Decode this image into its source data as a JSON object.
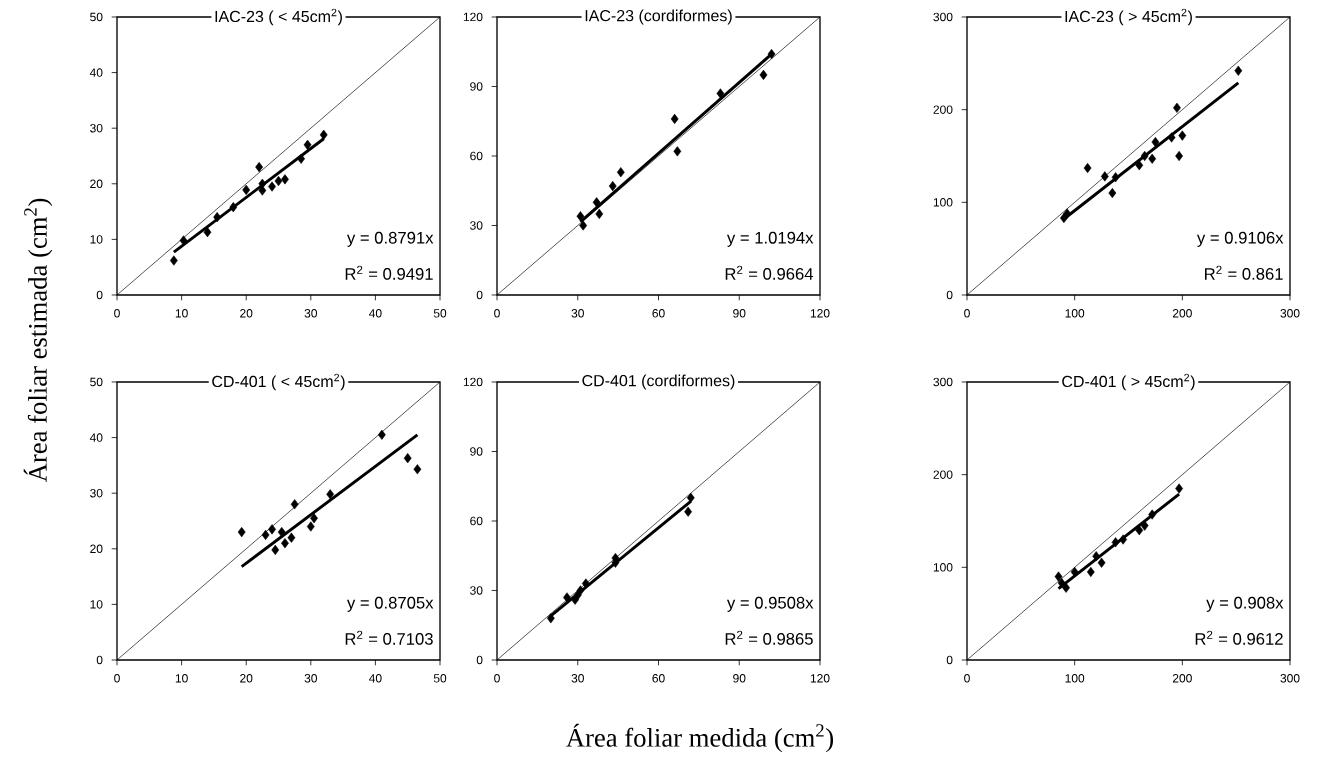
{
  "chart_data": [
    {
      "type": "scatter",
      "title": "IAC-23 ( < 45cm$^{2}$)",
      "ylabel": "Área foliar estimada (cm$^{2}$)",
      "xlim": [
        0,
        50
      ],
      "ylim": [
        0,
        50
      ],
      "xticks": [
        0,
        10,
        20,
        30,
        40,
        50
      ],
      "yticks": [
        0,
        10,
        20,
        30,
        40,
        50
      ],
      "annotations": [
        "y = 0.8791x",
        "R$^{2}$ = 0.9491"
      ],
      "series": [
        {
          "marker": "diamond",
          "color": "#000000",
          "x": [
            8.8,
            10.3,
            14,
            15.5,
            18,
            20,
            22,
            22.5,
            22.5,
            24,
            25,
            26,
            28.5,
            29.5,
            32
          ],
          "values": [
            6.2,
            9.8,
            11.3,
            14,
            15.8,
            18.9,
            23,
            20,
            18.8,
            19.5,
            20.5,
            20.8,
            24.5,
            27,
            28.8
          ]
        },
        {
          "type": "line",
          "color": "#000000",
          "x": [
            8.8,
            32
          ],
          "values": [
            7.7,
            28.1
          ]
        },
        {
          "type": "line",
          "color": "#000000",
          "x": [
            0,
            50
          ],
          "values": [
            0,
            50
          ]
        }
      ]
    },
    {
      "type": "scatter",
      "title": "IAC-23 (cordiformes)",
      "xlim": [
        0,
        120
      ],
      "ylim": [
        0,
        120
      ],
      "xticks": [
        0,
        30,
        60,
        90,
        120
      ],
      "yticks": [
        0,
        30,
        60,
        90,
        120
      ],
      "annotations": [
        "y = 1.0194x",
        "R$^{2}$ = 0.9664"
      ],
      "series": [
        {
          "marker": "diamond",
          "color": "#000000",
          "x": [
            31,
            32,
            37,
            38,
            43,
            46,
            66,
            67,
            83,
            99,
            102
          ],
          "values": [
            34,
            30,
            40,
            35,
            47,
            53,
            76,
            62,
            87,
            95,
            104
          ]
        },
        {
          "type": "line",
          "color": "#000000",
          "x": [
            31,
            102
          ],
          "values": [
            31.6,
            104
          ]
        },
        {
          "type": "line",
          "color": "#000000",
          "x": [
            0,
            120
          ],
          "values": [
            0,
            120
          ]
        }
      ]
    },
    {
      "type": "scatter",
      "title": "IAC-23 ( > 45cm$^{2}$)",
      "xlim": [
        0,
        300
      ],
      "ylim": [
        0,
        300
      ],
      "xticks": [
        0,
        100,
        200,
        300
      ],
      "yticks": [
        0,
        100,
        200,
        300
      ],
      "annotations": [
        "y = 0.9106x",
        "R$^{2}$ = 0.861"
      ],
      "series": [
        {
          "marker": "diamond",
          "color": "#000000",
          "x": [
            90,
            93,
            112,
            128,
            135,
            138,
            160,
            165,
            172,
            175,
            190,
            195,
            197,
            200,
            252
          ],
          "values": [
            83,
            88,
            137,
            128,
            110,
            127,
            140,
            150,
            147,
            165,
            170,
            202,
            150,
            172,
            242
          ]
        },
        {
          "type": "line",
          "color": "#000000",
          "x": [
            90,
            252
          ],
          "values": [
            82,
            229
          ]
        },
        {
          "type": "line",
          "color": "#000000",
          "x": [
            0,
            300
          ],
          "values": [
            0,
            300
          ]
        }
      ]
    },
    {
      "type": "scatter",
      "title": "CD-401 ( < 45cm$^{2}$)",
      "xlim": [
        0,
        50
      ],
      "ylim": [
        0,
        50
      ],
      "xticks": [
        0,
        10,
        20,
        30,
        40,
        50
      ],
      "yticks": [
        0,
        10,
        20,
        30,
        40,
        50
      ],
      "annotations": [
        "y = 0.8705x",
        "R$^{2}$ = 0.7103"
      ],
      "series": [
        {
          "marker": "diamond",
          "color": "#000000",
          "x": [
            19.3,
            23,
            24,
            24.5,
            25.5,
            26,
            27,
            27.5,
            30,
            30.5,
            33,
            41,
            45,
            46.5
          ],
          "values": [
            23,
            22.5,
            23.5,
            19.8,
            23,
            21,
            22,
            28,
            24,
            25.5,
            29.8,
            40.5,
            36.3,
            34.3
          ]
        },
        {
          "type": "line",
          "color": "#000000",
          "x": [
            19.3,
            46.5
          ],
          "values": [
            16.8,
            40.5
          ]
        },
        {
          "type": "line",
          "color": "#000000",
          "x": [
            0,
            50
          ],
          "values": [
            0,
            50
          ]
        }
      ]
    },
    {
      "type": "scatter",
      "title": "CD-401 (cordiformes)",
      "xlabel": "Área foliar medida (cm$^{2}$)",
      "xlim": [
        0,
        120
      ],
      "ylim": [
        0,
        120
      ],
      "xticks": [
        0,
        30,
        60,
        90,
        120
      ],
      "yticks": [
        0,
        30,
        60,
        90,
        120
      ],
      "annotations": [
        "y = 0.9508x",
        "R$^{2}$ = 0.9865"
      ],
      "series": [
        {
          "marker": "diamond",
          "color": "#000000",
          "x": [
            20,
            26,
            29,
            30,
            31,
            33,
            44,
            44,
            71,
            72
          ],
          "values": [
            18,
            27,
            26,
            28,
            30,
            33,
            44,
            42,
            64,
            70
          ]
        },
        {
          "type": "line",
          "color": "#000000",
          "x": [
            20,
            72
          ],
          "values": [
            19,
            68.5
          ]
        },
        {
          "type": "line",
          "color": "#000000",
          "x": [
            0,
            120
          ],
          "values": [
            0,
            120
          ]
        }
      ]
    },
    {
      "type": "scatter",
      "title": "CD-401 ( > 45cm$^{2}$)",
      "xlim": [
        0,
        300
      ],
      "ylim": [
        0,
        300
      ],
      "xticks": [
        0,
        100,
        200,
        300
      ],
      "yticks": [
        0,
        100,
        200,
        300
      ],
      "annotations": [
        "y = 0.908x",
        "R$^{2}$ = 0.9612"
      ],
      "series": [
        {
          "marker": "diamond",
          "color": "#000000",
          "x": [
            85,
            88,
            92,
            100,
            115,
            120,
            125,
            138,
            145,
            160,
            165,
            172,
            197
          ],
          "values": [
            90,
            83,
            78,
            95,
            95,
            112,
            105,
            127,
            130,
            140,
            145,
            157,
            185
          ]
        },
        {
          "type": "line",
          "color": "#000000",
          "x": [
            85,
            197
          ],
          "values": [
            77,
            179
          ]
        },
        {
          "type": "line",
          "color": "#000000",
          "x": [
            0,
            300
          ],
          "values": [
            0,
            300
          ]
        }
      ]
    }
  ]
}
